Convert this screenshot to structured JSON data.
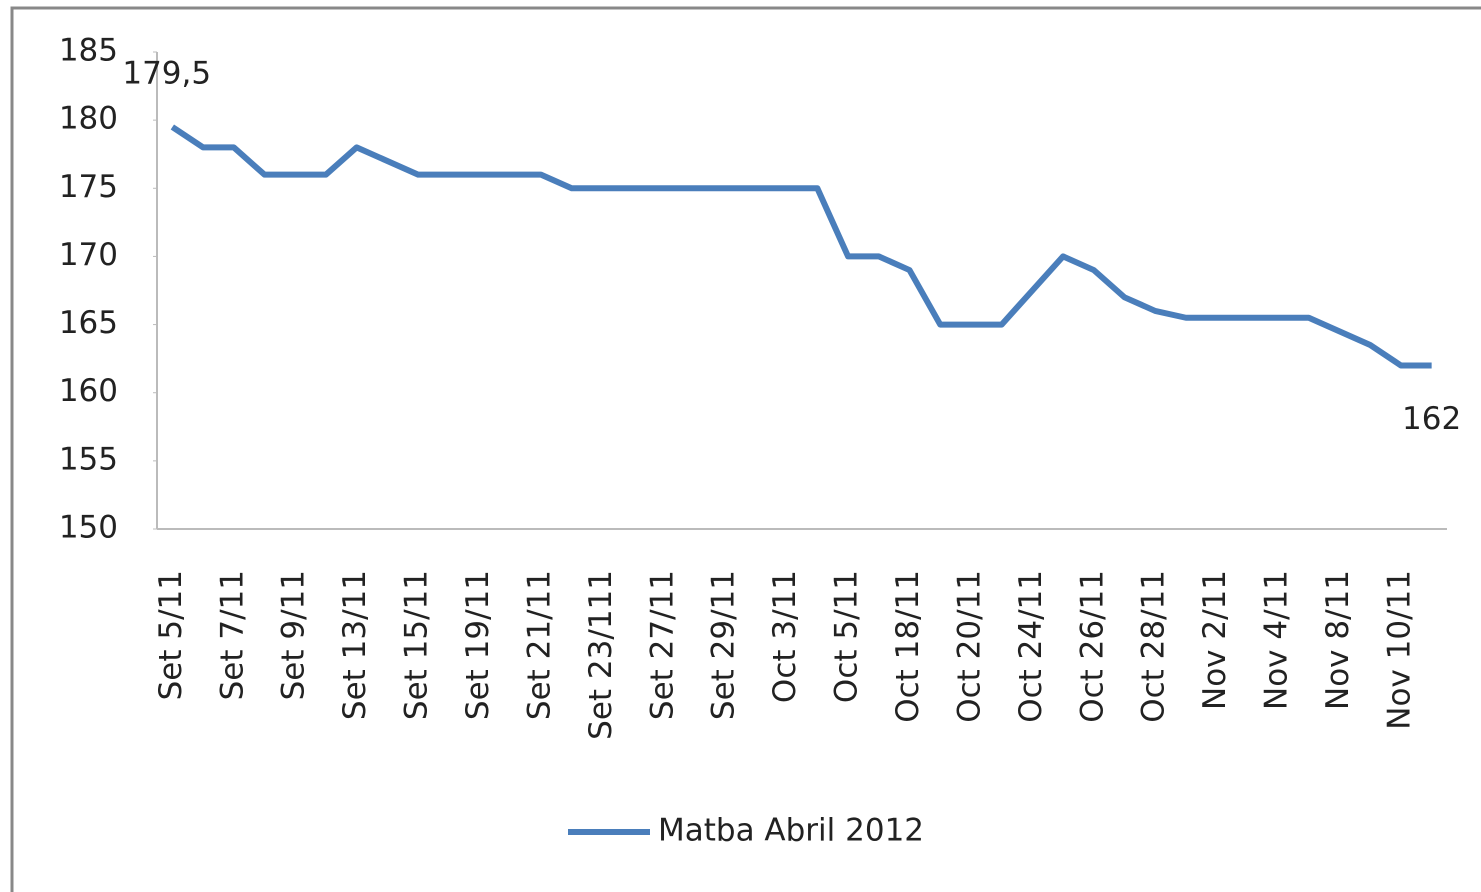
{
  "chart_data": {
    "type": "line",
    "categories": [
      "Set 5/11",
      null,
      "Set 7/11",
      null,
      "Set 9/11",
      null,
      "Set 13/11",
      null,
      "Set 15/11",
      null,
      "Set 19/11",
      null,
      "Set 21/11",
      null,
      "Set 23/111",
      null,
      "Set 27/11",
      null,
      "Set 29/11",
      null,
      "Oct 3/11",
      null,
      "Oct 5/11",
      null,
      "Oct 18/11",
      null,
      "Oct 20/11",
      null,
      "Oct 24/11",
      null,
      "Oct 26/11",
      null,
      "Oct 28/11",
      null,
      "Nov 2/11",
      null,
      "Nov 4/11",
      null,
      "Nov 8/11",
      null,
      "Nov 10/11",
      null
    ],
    "series": [
      {
        "name": "Matba Abril 2012",
        "color": "#4a7ebb",
        "values": [
          179.5,
          178,
          178,
          176,
          176,
          176,
          178,
          177,
          176,
          176,
          176,
          176,
          176,
          175,
          175,
          175,
          175,
          175,
          175,
          175,
          175,
          175,
          170,
          170,
          169,
          165,
          165,
          165,
          167.5,
          170,
          169,
          167,
          166,
          165.5,
          165.5,
          165.5,
          165.5,
          165.5,
          164.5,
          163.5,
          162,
          162
        ],
        "value_labels": [
          "179,5",
          null,
          null,
          null,
          null,
          null,
          null,
          null,
          null,
          null,
          null,
          null,
          null,
          null,
          null,
          null,
          null,
          null,
          null,
          null,
          null,
          null,
          null,
          null,
          null,
          null,
          null,
          null,
          null,
          null,
          null,
          null,
          null,
          null,
          null,
          null,
          null,
          null,
          null,
          null,
          null,
          "162"
        ]
      }
    ],
    "ylim": [
      150,
      185
    ],
    "yticks": [
      150,
      155,
      160,
      165,
      170,
      175,
      180,
      185
    ],
    "grid": false,
    "legend": "bottom"
  }
}
